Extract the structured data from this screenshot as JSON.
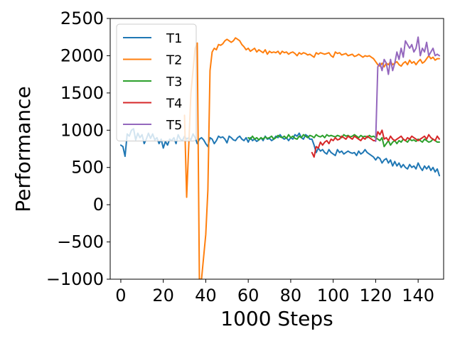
{
  "chart_data": {
    "type": "line",
    "title": "",
    "xlabel": "1000 Steps",
    "ylabel": "Performance",
    "xlim": [
      -5,
      152
    ],
    "ylim": [
      -1000,
      2500
    ],
    "xticks": [
      0,
      20,
      40,
      60,
      80,
      100,
      120,
      140
    ],
    "yticks": [
      -1000,
      -500,
      0,
      500,
      1000,
      1500,
      2000,
      2500
    ],
    "xtick_labels": [
      "0",
      "20",
      "40",
      "60",
      "80",
      "100",
      "120",
      "140"
    ],
    "ytick_labels": [
      "−1000",
      "−500",
      "0",
      "500",
      "1000",
      "1500",
      "2000",
      "2500"
    ],
    "grid": false,
    "legend_position": "top-left",
    "series": [
      {
        "name": "T1",
        "color": "#1f77b4",
        "x": [
          0,
          1,
          2,
          3,
          4,
          5,
          6,
          7,
          8,
          9,
          10,
          11,
          12,
          13,
          14,
          15,
          16,
          17,
          18,
          19,
          20,
          21,
          22,
          23,
          24,
          25,
          26,
          27,
          28,
          29,
          30,
          31,
          32,
          33,
          34,
          35,
          36,
          37,
          38,
          39,
          40,
          41,
          42,
          43,
          44,
          45,
          46,
          47,
          48,
          49,
          50,
          51,
          52,
          53,
          54,
          55,
          56,
          57,
          58,
          59,
          60,
          61,
          62,
          63,
          64,
          65,
          66,
          67,
          68,
          69,
          70,
          71,
          72,
          73,
          74,
          75,
          76,
          77,
          78,
          79,
          80,
          81,
          82,
          83,
          84,
          85,
          86,
          87,
          88,
          89,
          90,
          91,
          92,
          93,
          94,
          95,
          96,
          97,
          98,
          99,
          100,
          101,
          102,
          103,
          104,
          105,
          106,
          107,
          108,
          109,
          110,
          111,
          112,
          113,
          114,
          115,
          116,
          117,
          118,
          119,
          120,
          121,
          122,
          123,
          124,
          125,
          126,
          127,
          128,
          129,
          130,
          131,
          132,
          133,
          134,
          135,
          136,
          137,
          138,
          139,
          140,
          141,
          142,
          143,
          144,
          145,
          146,
          147,
          148,
          149,
          150
        ],
        "y": [
          800,
          780,
          650,
          950,
          920,
          1000,
          1020,
          870,
          960,
          900,
          940,
          820,
          880,
          960,
          890,
          950,
          870,
          900,
          820,
          880,
          760,
          850,
          800,
          880,
          860,
          900,
          820,
          940,
          880,
          860,
          920,
          880,
          900,
          870,
          950,
          900,
          820,
          880,
          900,
          870,
          820,
          780,
          900,
          880,
          820,
          860,
          920,
          900,
          910,
          880,
          830,
          920,
          900,
          870,
          860,
          900,
          920,
          880,
          860,
          900,
          840,
          900,
          860,
          880,
          850,
          870,
          900,
          860,
          920,
          880,
          890,
          860,
          880,
          920,
          900,
          940,
          900,
          880,
          900,
          860,
          900,
          880,
          940,
          920,
          960,
          900,
          880,
          940,
          920,
          880,
          880,
          800,
          700,
          760,
          720,
          740,
          700,
          680,
          740,
          700,
          680,
          660,
          740,
          700,
          720,
          680,
          700,
          720,
          700,
          690,
          700,
          660,
          720,
          680,
          700,
          740,
          700,
          680,
          660,
          640,
          600,
          640,
          620,
          560,
          600,
          620,
          560,
          600,
          520,
          580,
          520,
          560,
          500,
          540,
          500,
          480,
          540,
          500,
          520,
          480,
          560,
          500,
          460,
          520,
          480,
          520,
          460,
          500,
          440,
          480,
          390
        ]
      },
      {
        "name": "T2",
        "color": "#ff7f0e",
        "x": [
          30,
          31,
          32,
          33,
          34,
          35,
          36,
          37,
          38,
          39,
          40,
          41,
          42,
          43,
          44,
          45,
          46,
          47,
          48,
          49,
          50,
          51,
          52,
          53,
          54,
          55,
          56,
          57,
          58,
          59,
          60,
          61,
          62,
          63,
          64,
          65,
          66,
          67,
          68,
          69,
          70,
          71,
          72,
          73,
          74,
          75,
          76,
          77,
          78,
          79,
          80,
          81,
          82,
          83,
          84,
          85,
          86,
          87,
          88,
          89,
          90,
          91,
          92,
          93,
          94,
          95,
          96,
          97,
          98,
          99,
          100,
          101,
          102,
          103,
          104,
          105,
          106,
          107,
          108,
          109,
          110,
          111,
          112,
          113,
          114,
          115,
          116,
          117,
          118,
          119,
          120,
          121,
          122,
          123,
          124,
          125,
          126,
          127,
          128,
          129,
          130,
          131,
          132,
          133,
          134,
          135,
          136,
          137,
          138,
          139,
          140,
          141,
          142,
          143,
          144,
          145,
          146,
          147,
          148,
          149,
          150
        ],
        "y": [
          1200,
          100,
          800,
          1500,
          1800,
          2100,
          2170,
          -1000,
          -1000,
          -700,
          -400,
          200,
          1800,
          2050,
          2100,
          2080,
          2150,
          2140,
          2160,
          2200,
          2220,
          2200,
          2180,
          2200,
          2240,
          2220,
          2200,
          2150,
          2120,
          2080,
          2100,
          2060,
          2080,
          2100,
          2050,
          2080,
          2060,
          2040,
          2080,
          2020,
          2060,
          2040,
          2050,
          2040,
          2060,
          2020,
          2060,
          2040,
          2050,
          2020,
          2040,
          2050,
          2030,
          2000,
          2040,
          2020,
          2040,
          2030,
          2010,
          2020,
          2000,
          1980,
          2040,
          2020,
          2040,
          2030,
          2020,
          2030,
          2040,
          2000,
          1980,
          2050,
          2030,
          2040,
          2010,
          2020,
          2030,
          2000,
          2010,
          2020,
          1990,
          2000,
          2020,
          2000,
          1980,
          2000,
          1990,
          2000,
          1980,
          1960,
          1920,
          1880,
          1860,
          1900,
          1850,
          1900,
          1880,
          1920,
          1880,
          1900,
          1920,
          1880,
          1860,
          1900,
          1920,
          1880,
          1940,
          1900,
          1920,
          1880,
          1920,
          1950,
          1900,
          1920,
          1960,
          2000,
          1960,
          1980,
          1940,
          1960,
          1960
        ]
      },
      {
        "name": "T3",
        "color": "#2ca02c",
        "x": [
          60,
          61,
          62,
          63,
          64,
          65,
          66,
          67,
          68,
          69,
          70,
          71,
          72,
          73,
          74,
          75,
          76,
          77,
          78,
          79,
          80,
          81,
          82,
          83,
          84,
          85,
          86,
          87,
          88,
          89,
          90,
          91,
          92,
          93,
          94,
          95,
          96,
          97,
          98,
          99,
          100,
          101,
          102,
          103,
          104,
          105,
          106,
          107,
          108,
          109,
          110,
          111,
          112,
          113,
          114,
          115,
          116,
          117,
          118,
          119,
          120,
          121,
          122,
          123,
          124,
          125,
          126,
          127,
          128,
          129,
          130,
          131,
          132,
          133,
          134,
          135,
          136,
          137,
          138,
          139,
          140,
          141,
          142,
          143,
          144,
          145,
          146,
          147,
          148,
          149,
          150
        ],
        "y": [
          900,
          880,
          920,
          880,
          900,
          870,
          900,
          880,
          910,
          890,
          900,
          920,
          880,
          900,
          930,
          910,
          900,
          920,
          890,
          940,
          900,
          920,
          890,
          880,
          920,
          900,
          940,
          920,
          900,
          930,
          920,
          900,
          940,
          920,
          910,
          930,
          900,
          940,
          920,
          930,
          920,
          910,
          930,
          920,
          900,
          940,
          920,
          930,
          910,
          920,
          940,
          920,
          900,
          930,
          910,
          920,
          900,
          930,
          910,
          920,
          900,
          880,
          860,
          900,
          780,
          820,
          860,
          800,
          840,
          860,
          820,
          860,
          840,
          880,
          860,
          840,
          880,
          860,
          870,
          850,
          880,
          860,
          840,
          880,
          860,
          840,
          850,
          880,
          860,
          840,
          840
        ]
      },
      {
        "name": "T4",
        "color": "#d62728",
        "x": [
          90,
          91,
          92,
          93,
          94,
          95,
          96,
          97,
          98,
          99,
          100,
          101,
          102,
          103,
          104,
          105,
          106,
          107,
          108,
          109,
          110,
          111,
          112,
          113,
          114,
          115,
          116,
          117,
          118,
          119,
          120,
          121,
          122,
          123,
          124,
          125,
          126,
          127,
          128,
          129,
          130,
          131,
          132,
          133,
          134,
          135,
          136,
          137,
          138,
          139,
          140,
          141,
          142,
          143,
          144,
          145,
          146,
          147,
          148,
          149,
          150
        ],
        "y": [
          700,
          640,
          780,
          760,
          840,
          800,
          840,
          860,
          820,
          880,
          860,
          900,
          870,
          880,
          920,
          900,
          880,
          920,
          900,
          880,
          920,
          900,
          880,
          860,
          900,
          880,
          920,
          900,
          880,
          860,
          860,
          980,
          940,
          1000,
          880,
          900,
          860,
          920,
          880,
          860,
          880,
          900,
          920,
          880,
          860,
          900,
          880,
          920,
          900,
          880,
          860,
          880,
          900,
          920,
          880,
          940,
          900,
          880,
          860,
          920,
          880
        ]
      },
      {
        "name": "T5",
        "color": "#9467bd",
        "x": [
          120,
          121,
          122,
          123,
          124,
          125,
          126,
          127,
          128,
          129,
          130,
          131,
          132,
          133,
          134,
          135,
          136,
          137,
          138,
          139,
          140,
          141,
          142,
          143,
          144,
          145,
          146,
          147,
          148,
          149,
          150
        ],
        "y": [
          850,
          1850,
          1900,
          1800,
          1950,
          1900,
          1750,
          1950,
          1800,
          1900,
          2050,
          1950,
          2100,
          1980,
          2200,
          2150,
          2100,
          2150,
          2050,
          2100,
          2250,
          2000,
          2100,
          2050,
          2180,
          2000,
          2050,
          2100,
          2000,
          2020,
          2000
        ]
      }
    ]
  }
}
